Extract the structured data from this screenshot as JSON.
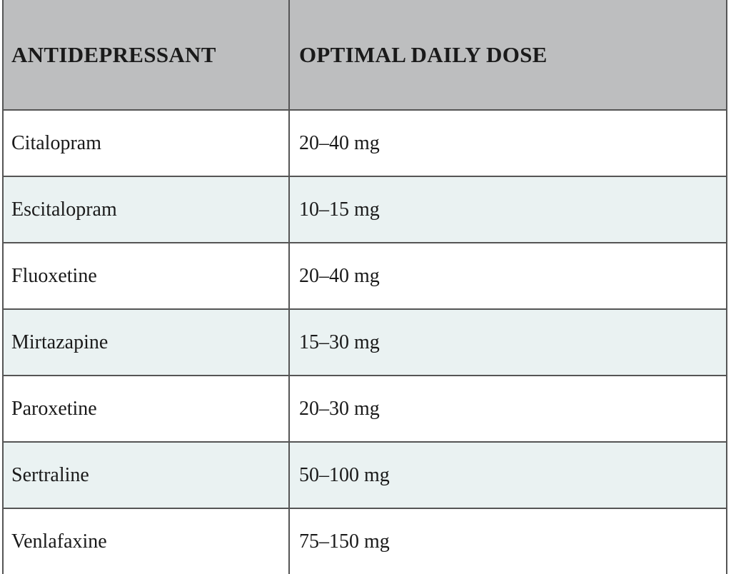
{
  "table": {
    "headers": [
      "ANTIDEPRESSANT",
      "OPTIMAL DAILY DOSE"
    ],
    "rows": [
      [
        "Citalopram",
        "20–40 mg"
      ],
      [
        "Escitalopram",
        "10–15 mg"
      ],
      [
        "Fluoxetine",
        "20–40 mg"
      ],
      [
        "Mirtazapine",
        "15–30 mg"
      ],
      [
        "Paroxetine",
        "20–30 mg"
      ],
      [
        "Sertraline",
        "50–100 mg"
      ],
      [
        "Venlafaxine",
        "75–150 mg"
      ]
    ]
  },
  "colors": {
    "header_bg": "#bdbebf",
    "stripe_bg": "#eaf2f2",
    "border": "#555555"
  }
}
